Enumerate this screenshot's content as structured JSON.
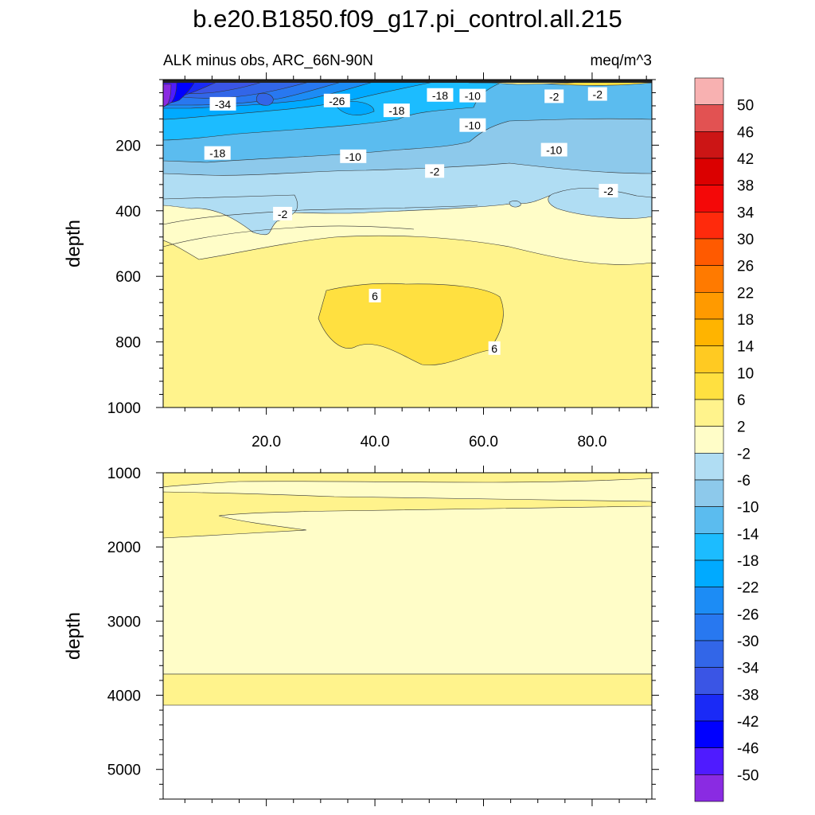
{
  "title": "b.e20.B1850.f09_g17.pi_control.all.215",
  "subtitle_left": "ALK minus obs, ARC_66N-90N",
  "subtitle_right": "meq/m^3",
  "chart_data": {
    "type": "contour",
    "x_range": [
      1,
      91
    ],
    "x_ticks": [
      "20.0",
      "40.0",
      "60.0",
      "80.0"
    ],
    "x_tick_values": [
      20,
      40,
      60,
      80
    ],
    "panels": [
      {
        "name": "upper",
        "ylabel": "depth",
        "y_range": [
          0,
          1000
        ],
        "y_inverted": true,
        "y_ticks": [
          "200",
          "400",
          "600",
          "800",
          "1000"
        ],
        "y_tick_values": [
          200,
          400,
          600,
          800,
          1000
        ],
        "contour_labels": [
          {
            "text": "-34",
            "x": 12,
            "y": 75
          },
          {
            "text": "-26",
            "x": 33,
            "y": 65
          },
          {
            "text": "-18",
            "x": 44,
            "y": 95
          },
          {
            "text": "-18",
            "x": 52,
            "y": 48
          },
          {
            "text": "-10",
            "x": 58,
            "y": 50
          },
          {
            "text": "-2",
            "x": 73,
            "y": 52
          },
          {
            "text": "-2",
            "x": 81,
            "y": 45
          },
          {
            "text": "-10",
            "x": 58,
            "y": 140
          },
          {
            "text": "-18",
            "x": 11,
            "y": 225
          },
          {
            "text": "-10",
            "x": 36,
            "y": 235
          },
          {
            "text": "-10",
            "x": 73,
            "y": 215
          },
          {
            "text": "-2",
            "x": 51,
            "y": 280
          },
          {
            "text": "-2",
            "x": 83,
            "y": 340
          },
          {
            "text": "-2",
            "x": 23,
            "y": 410
          },
          {
            "text": "6",
            "x": 40,
            "y": 660
          },
          {
            "text": "6",
            "x": 62,
            "y": 820
          }
        ]
      },
      {
        "name": "lower",
        "ylabel": "depth",
        "y_range": [
          1000,
          5400
        ],
        "y_inverted": true,
        "y_ticks": [
          "1000",
          "2000",
          "3000",
          "4000",
          "5000"
        ],
        "y_tick_values": [
          1000,
          2000,
          3000,
          4000,
          5000
        ],
        "contour_labels": []
      }
    ],
    "colorbar": {
      "labels": [
        "50",
        "46",
        "42",
        "38",
        "34",
        "30",
        "26",
        "22",
        "18",
        "14",
        "10",
        "6",
        "2",
        "-2",
        "-6",
        "-10",
        "-14",
        "-18",
        "-22",
        "-26",
        "-30",
        "-34",
        "-38",
        "-42",
        "-46",
        "-50"
      ],
      "colors": [
        "#F8B1B1",
        "#E25252",
        "#CC1515",
        "#DB0000",
        "#F40808",
        "#FF2A0C",
        "#FF5A00",
        "#FF7A00",
        "#FF9A00",
        "#FFB400",
        "#FFCA22",
        "#FFE040",
        "#FFF38C",
        "#FFFDC8",
        "#B0DDF3",
        "#8DC9EB",
        "#5BBCEF",
        "#1CBCFF",
        "#00AAFF",
        "#1C8CF5",
        "#2878F0",
        "#3266E8",
        "#3A55E5",
        "#1A2AF6",
        "#0000FF",
        "#4F1BFF",
        "#8A2BE2"
      ]
    }
  }
}
